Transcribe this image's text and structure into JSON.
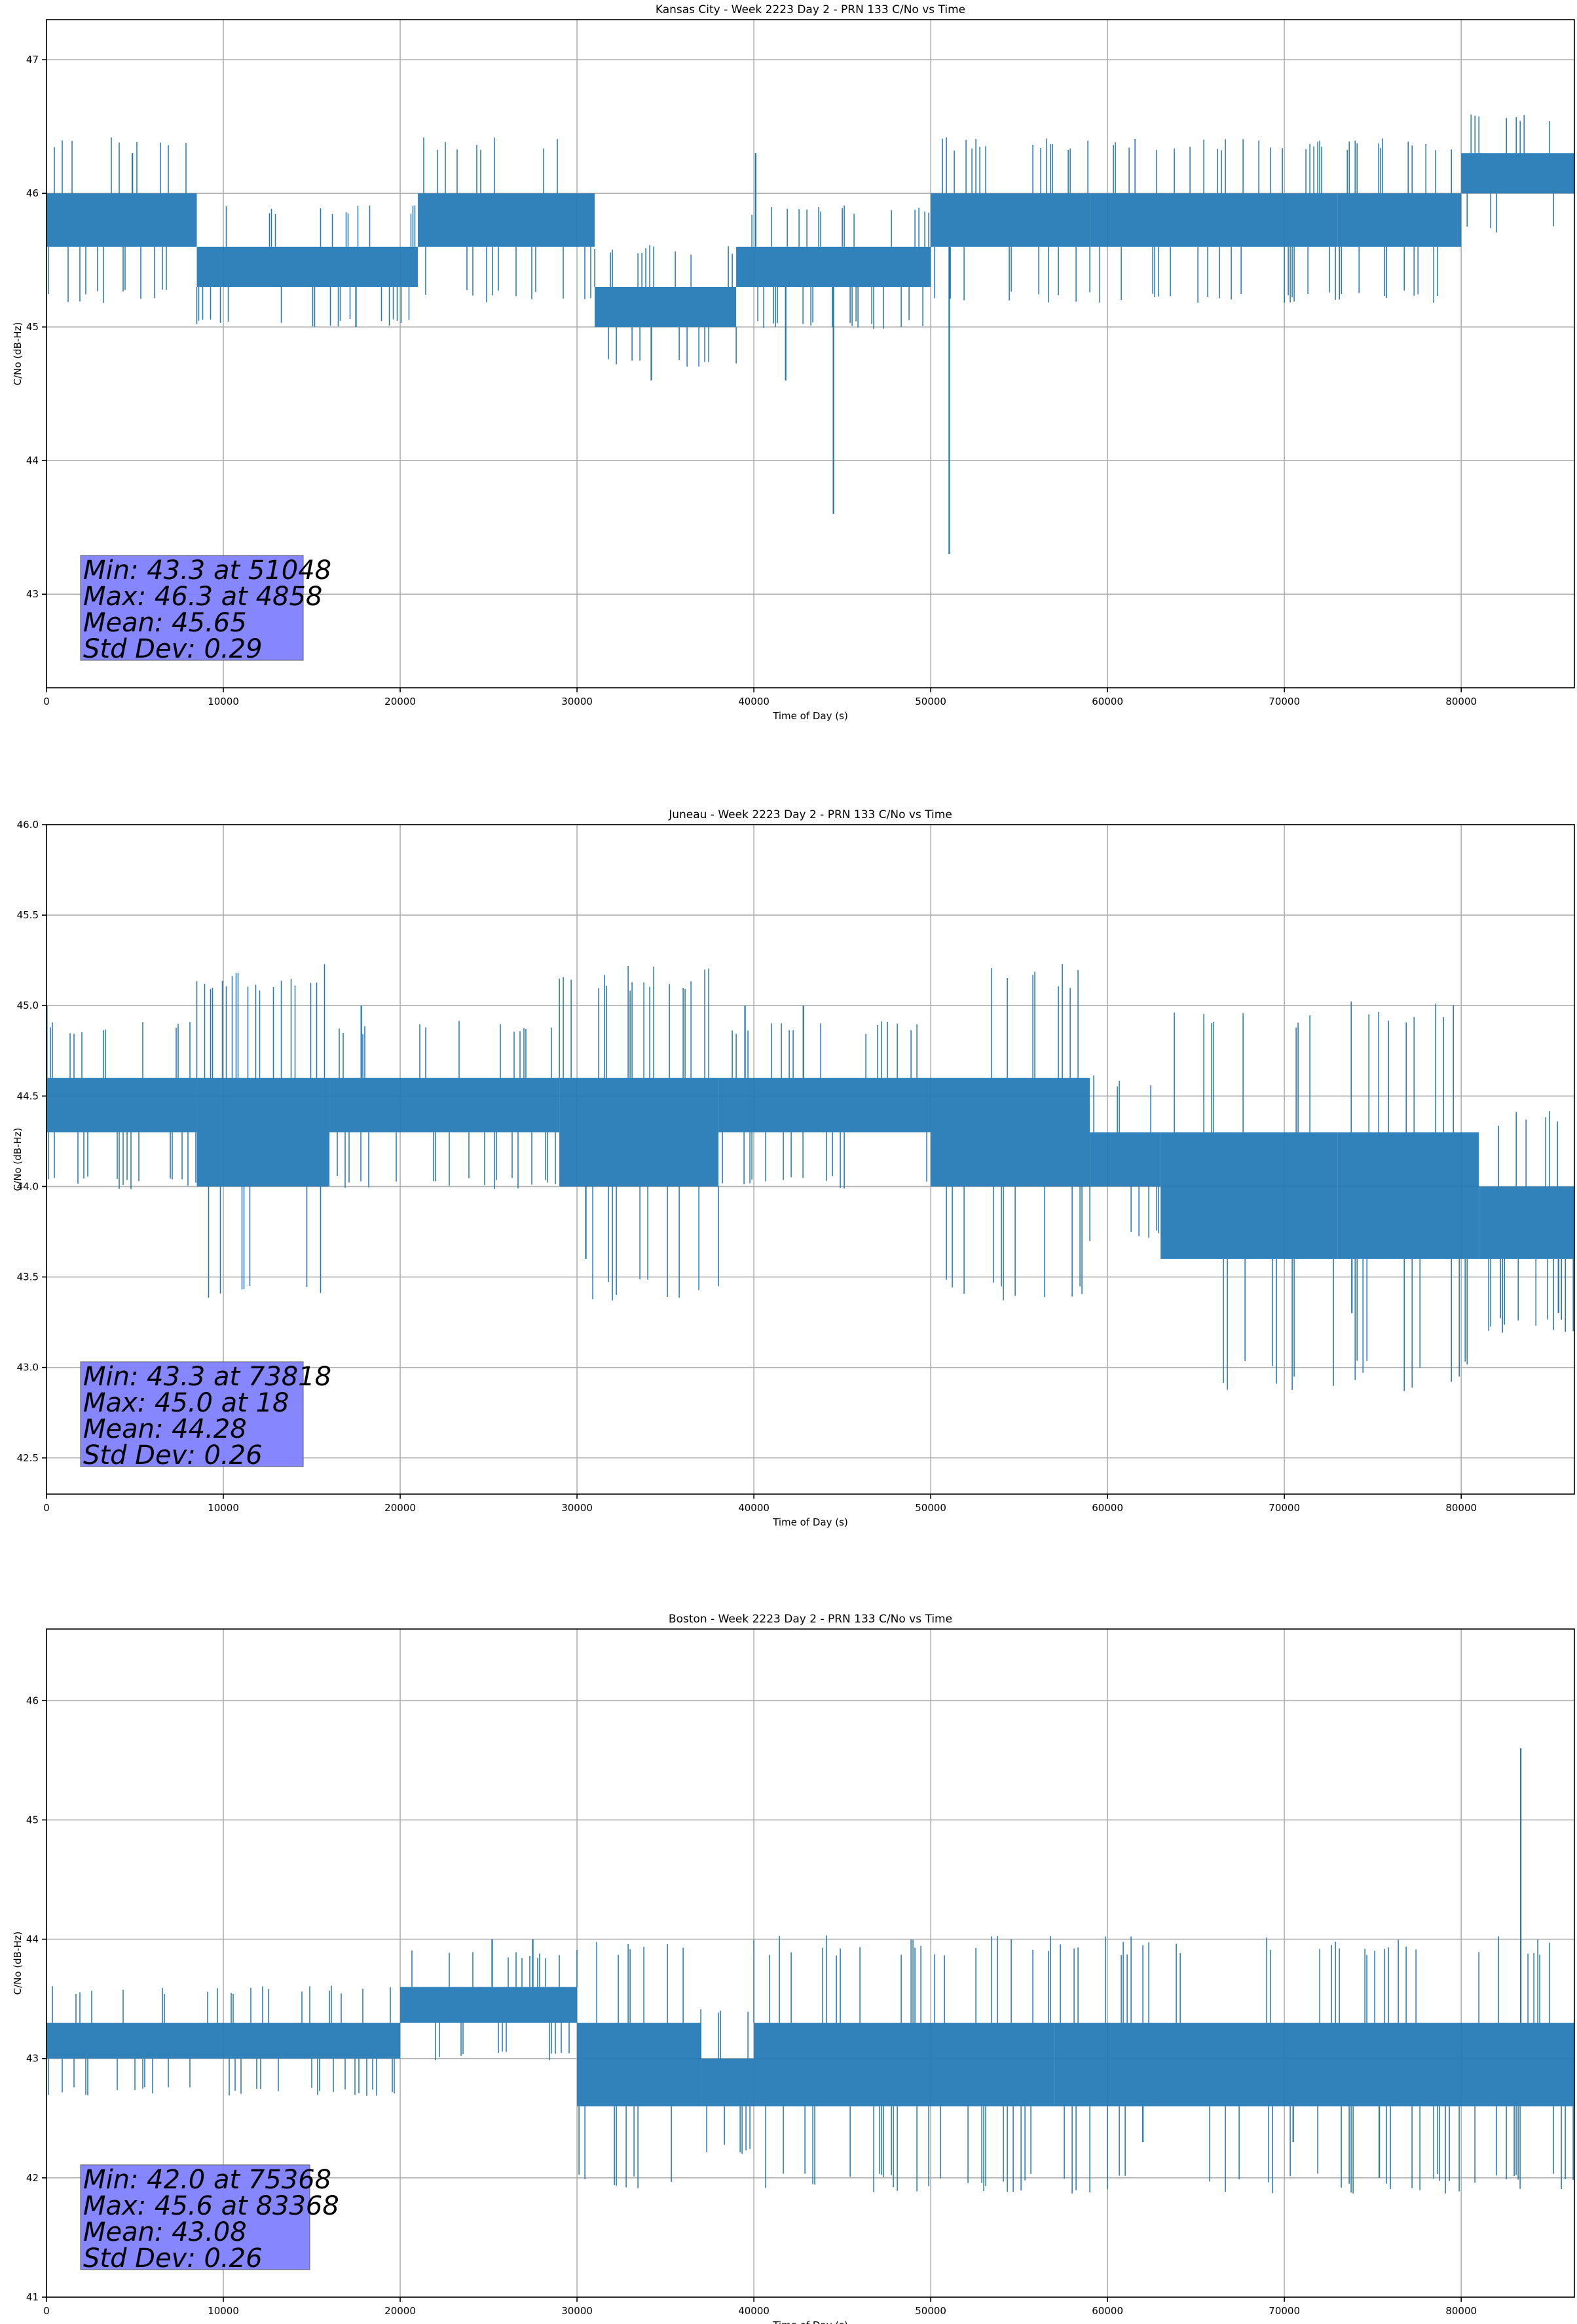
{
  "chart_data": [
    {
      "type": "line",
      "title": "Kansas City - Week 2223 Day 2 - PRN 133 C/No vs Time",
      "xlabel": "Time of Day (s)",
      "ylabel": "C/No (dB-Hz)",
      "xlim": [
        0,
        86400
      ],
      "ylim": [
        42.3,
        47.3
      ],
      "xticks": [
        0,
        10000,
        20000,
        30000,
        40000,
        50000,
        60000,
        70000,
        80000
      ],
      "yticks": [
        43,
        44,
        45,
        46,
        47
      ],
      "grid": true,
      "line_color": "#1f77b4",
      "band_segments": [
        {
          "x": [
            0,
            8500
          ],
          "y": [
            45.6,
            46.0
          ]
        },
        {
          "x": [
            8500,
            21000
          ],
          "y": [
            45.3,
            45.6
          ]
        },
        {
          "x": [
            21000,
            31000
          ],
          "y": [
            45.6,
            46.0
          ]
        },
        {
          "x": [
            31000,
            39000
          ],
          "y": [
            45.0,
            45.3
          ]
        },
        {
          "x": [
            39000,
            50000
          ],
          "y": [
            45.3,
            45.6
          ]
        },
        {
          "x": [
            50000,
            59000
          ],
          "y": [
            45.6,
            46.0
          ]
        },
        {
          "x": [
            59000,
            73000
          ],
          "y": [
            45.6,
            46.0
          ]
        },
        {
          "x": [
            73000,
            80000
          ],
          "y": [
            45.6,
            46.0
          ]
        },
        {
          "x": [
            80000,
            86400
          ],
          "y": [
            46.0,
            46.3
          ]
        }
      ],
      "spikes": [
        {
          "x": 44500,
          "y": 43.6
        },
        {
          "x": 51048,
          "y": 43.3
        },
        {
          "x": 34200,
          "y": 44.6
        },
        {
          "x": 41800,
          "y": 44.6
        },
        {
          "x": 17500,
          "y": 45.0
        },
        {
          "x": 4858,
          "y": 46.3
        },
        {
          "x": 40100,
          "y": 46.3
        }
      ],
      "stats_box": {
        "min": "Min: 43.3 at 51048",
        "max": "Max: 46.3 at 4858",
        "mean": "Mean: 45.65",
        "std": "Std Dev: 0.29",
        "color": "#8080ff"
      }
    },
    {
      "type": "line",
      "title": "Juneau - Week 2223 Day 2 - PRN 133 C/No vs Time",
      "xlabel": "Time of Day (s)",
      "ylabel": "C/No (dB-Hz)",
      "xlim": [
        0,
        86400
      ],
      "ylim": [
        42.3,
        46.0
      ],
      "xticks": [
        0,
        10000,
        20000,
        30000,
        40000,
        50000,
        60000,
        70000,
        80000
      ],
      "yticks": [
        "42.5",
        "43.0",
        "43.5",
        "44.0",
        "44.5",
        "45.0",
        "45.5",
        "46.0"
      ],
      "grid": true,
      "line_color": "#1f77b4",
      "band_segments": [
        {
          "x": [
            0,
            8500
          ],
          "y": [
            44.3,
            44.6
          ]
        },
        {
          "x": [
            8500,
            16000
          ],
          "y": [
            44.0,
            44.6
          ]
        },
        {
          "x": [
            16000,
            29000
          ],
          "y": [
            44.3,
            44.6
          ]
        },
        {
          "x": [
            29000,
            38000
          ],
          "y": [
            44.0,
            44.6
          ]
        },
        {
          "x": [
            38000,
            50000
          ],
          "y": [
            44.3,
            44.6
          ]
        },
        {
          "x": [
            50000,
            59000
          ],
          "y": [
            44.0,
            44.6
          ]
        },
        {
          "x": [
            59000,
            63000
          ],
          "y": [
            44.0,
            44.3
          ]
        },
        {
          "x": [
            63000,
            73000
          ],
          "y": [
            43.6,
            44.3
          ]
        },
        {
          "x": [
            73000,
            81000
          ],
          "y": [
            43.6,
            44.3
          ]
        },
        {
          "x": [
            81000,
            86400
          ],
          "y": [
            43.6,
            44.0
          ]
        }
      ],
      "spikes": [
        {
          "x": 18,
          "y": 45.0
        },
        {
          "x": 73818,
          "y": 43.3
        },
        {
          "x": 30500,
          "y": 43.6
        },
        {
          "x": 85500,
          "y": 43.3
        },
        {
          "x": 17800,
          "y": 45.0
        },
        {
          "x": 39500,
          "y": 45.0
        },
        {
          "x": 42800,
          "y": 45.0
        }
      ],
      "stats_box": {
        "min": "Min: 43.3 at 73818",
        "max": "Max: 45.0 at 18",
        "mean": "Mean: 44.28",
        "std": "Std Dev: 0.26",
        "color": "#8080ff"
      }
    },
    {
      "type": "line",
      "title": "Boston - Week 2223 Day 2 - PRN 133 C/No vs Time",
      "xlabel": "Time of Day (s)",
      "ylabel": "C/No (dB-Hz)",
      "xlim": [
        0,
        86400
      ],
      "ylim": [
        41.0,
        46.6
      ],
      "xticks": [
        0,
        10000,
        20000,
        30000,
        40000,
        50000,
        60000,
        70000,
        80000
      ],
      "yticks": [
        41,
        42,
        43,
        44,
        45,
        46
      ],
      "grid": true,
      "line_color": "#1f77b4",
      "band_segments": [
        {
          "x": [
            0,
            20000
          ],
          "y": [
            43.0,
            43.3
          ]
        },
        {
          "x": [
            20000,
            30000
          ],
          "y": [
            43.3,
            43.6
          ]
        },
        {
          "x": [
            30000,
            37000
          ],
          "y": [
            42.6,
            43.3
          ]
        },
        {
          "x": [
            37000,
            40000
          ],
          "y": [
            42.6,
            43.0
          ]
        },
        {
          "x": [
            40000,
            57000
          ],
          "y": [
            42.6,
            43.3
          ]
        },
        {
          "x": [
            57000,
            86400
          ],
          "y": [
            42.6,
            43.3
          ]
        }
      ],
      "spikes": [
        {
          "x": 83368,
          "y": 45.6
        },
        {
          "x": 75368,
          "y": 42.0
        },
        {
          "x": 25200,
          "y": 44.0
        },
        {
          "x": 27500,
          "y": 44.0
        },
        {
          "x": 62000,
          "y": 42.3
        },
        {
          "x": 70500,
          "y": 42.3
        }
      ],
      "stats_box": {
        "min": "Min: 42.0 at 75368",
        "max": "Max: 45.6 at 83368",
        "mean": "Mean: 43.08",
        "std": "Std Dev: 0.26",
        "color": "#8080ff"
      }
    }
  ]
}
